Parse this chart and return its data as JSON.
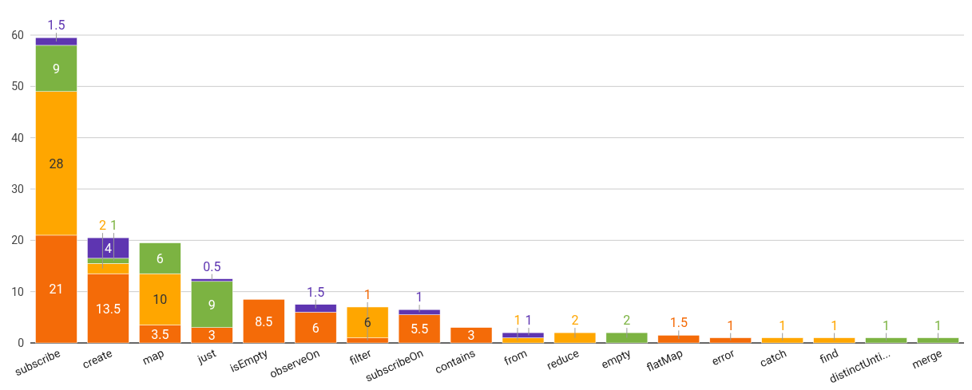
{
  "chart_data": {
    "type": "bar",
    "stacked": true,
    "categories": [
      "subscribe",
      "create",
      "map",
      "just",
      "isEmpty",
      "observeOn",
      "filter",
      "subscribeOn",
      "contains",
      "from",
      "reduce",
      "empty",
      "flatMap",
      "error",
      "catch",
      "find",
      "distinctUnti...",
      "merge"
    ],
    "series": [
      {
        "color": "#f46b08",
        "values": [
          21,
          13.5,
          3.5,
          3,
          8.5,
          6,
          1,
          5.5,
          3,
          null,
          null,
          null,
          1.5,
          1,
          null,
          null,
          null,
          null
        ]
      },
      {
        "color": "#ffa600",
        "values": [
          28,
          2,
          10,
          null,
          null,
          null,
          6,
          null,
          null,
          1,
          2,
          null,
          null,
          null,
          1,
          1,
          null,
          null
        ]
      },
      {
        "color": "#7cb342",
        "values": [
          9,
          1,
          6,
          9,
          null,
          null,
          null,
          null,
          null,
          null,
          null,
          2,
          null,
          null,
          null,
          null,
          1,
          1
        ]
      },
      {
        "color": "#5e35b1",
        "values": [
          1.5,
          4,
          null,
          0.5,
          null,
          1.5,
          null,
          1,
          null,
          1,
          null,
          null,
          null,
          null,
          null,
          null,
          null,
          null
        ]
      }
    ],
    "ylim": [
      0,
      60
    ],
    "yticks": [
      0,
      10,
      20,
      30,
      40,
      50,
      60
    ],
    "grid": "y",
    "data_labels": true
  }
}
